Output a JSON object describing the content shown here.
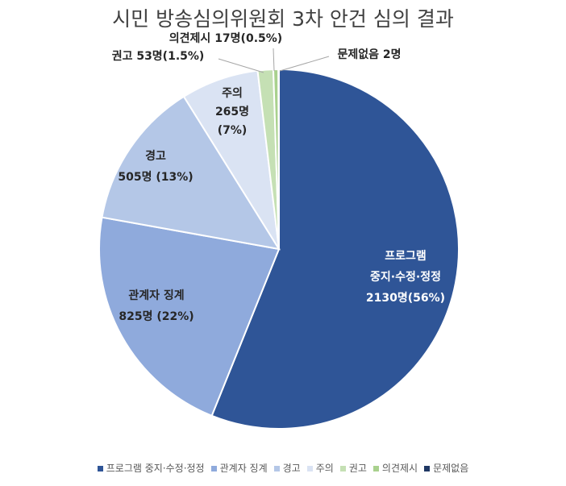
{
  "chart_data": {
    "type": "pie",
    "title": "시민 방송심의위원회 3차 안건 심의 결과",
    "slices": [
      {
        "name": "프로그램 중지·수정·정정",
        "value": 2130,
        "label_lines": [
          "프로그램",
          "중지·수정·정정",
          "2130명(56%)"
        ],
        "color": "#2F5597"
      },
      {
        "name": "관계자 징계",
        "value": 825,
        "label_lines": [
          "관계자 징계",
          "825명 (22%)"
        ],
        "color": "#8FAADC"
      },
      {
        "name": "경고",
        "value": 505,
        "label_lines": [
          "경고",
          "505명 (13%)"
        ],
        "color": "#B4C7E7"
      },
      {
        "name": "주의",
        "value": 265,
        "label_lines": [
          "주의",
          "265명",
          "(7%)"
        ],
        "color": "#DAE3F3"
      },
      {
        "name": "권고",
        "value": 53,
        "label_lines": [
          "권고 53명(1.5%)"
        ],
        "color": "#C5E0B4"
      },
      {
        "name": "의견제시",
        "value": 17,
        "label_lines": [
          "의견제시 17명(0.5%)"
        ],
        "color": "#A9D18E"
      },
      {
        "name": "문제없음",
        "value": 2,
        "label_lines": [
          "문제없음 2명"
        ],
        "color": "#1F3864"
      }
    ],
    "start_angle_deg": 0,
    "direction": "clockwise",
    "legend_position": "bottom"
  }
}
